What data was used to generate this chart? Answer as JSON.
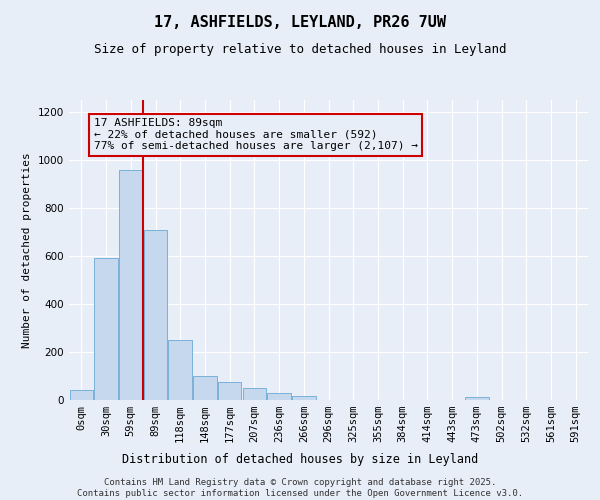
{
  "title": "17, ASHFIELDS, LEYLAND, PR26 7UW",
  "subtitle": "Size of property relative to detached houses in Leyland",
  "xlabel": "Distribution of detached houses by size in Leyland",
  "ylabel": "Number of detached properties",
  "footer_line1": "Contains HM Land Registry data © Crown copyright and database right 2025.",
  "footer_line2": "Contains public sector information licensed under the Open Government Licence v3.0.",
  "annotation_line1": "17 ASHFIELDS: 89sqm",
  "annotation_line2": "← 22% of detached houses are smaller (592)",
  "annotation_line3": "77% of semi-detached houses are larger (2,107) →",
  "bar_labels": [
    "0sqm",
    "30sqm",
    "59sqm",
    "89sqm",
    "118sqm",
    "148sqm",
    "177sqm",
    "207sqm",
    "236sqm",
    "266sqm",
    "296sqm",
    "325sqm",
    "355sqm",
    "384sqm",
    "414sqm",
    "443sqm",
    "473sqm",
    "502sqm",
    "532sqm",
    "561sqm",
    "591sqm"
  ],
  "bar_values": [
    42,
    592,
    960,
    710,
    248,
    100,
    75,
    50,
    28,
    18,
    0,
    0,
    0,
    0,
    0,
    0,
    14,
    0,
    0,
    0,
    0
  ],
  "bar_color": "#c5d8ee",
  "bar_edge_color": "#6aaad4",
  "vline_x_idx": 2.5,
  "vline_color": "#cc0000",
  "ylim": [
    0,
    1250
  ],
  "yticks": [
    0,
    200,
    400,
    600,
    800,
    1000,
    1200
  ],
  "background_color": "#e8eef8",
  "grid_color": "#ffffff",
  "title_fontsize": 11,
  "subtitle_fontsize": 9,
  "annotation_fontsize": 8,
  "axis_label_fontsize": 8,
  "tick_fontsize": 7.5,
  "footer_fontsize": 6.5
}
